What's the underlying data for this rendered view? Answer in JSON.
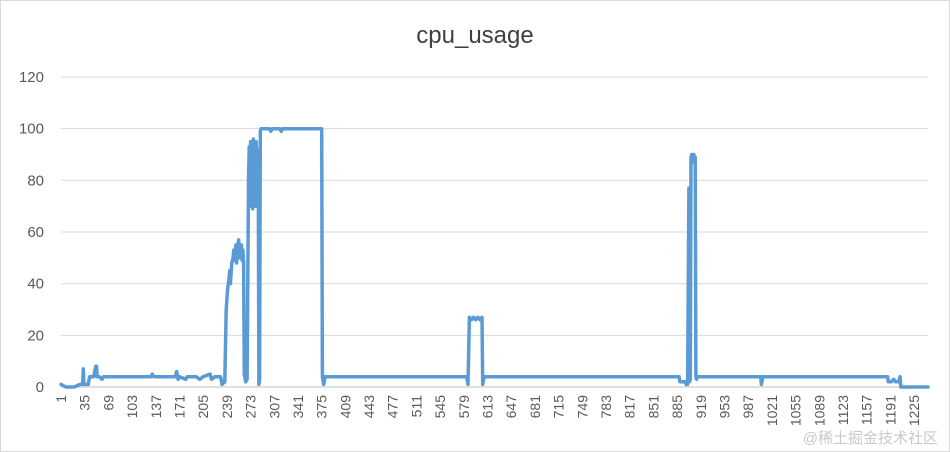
{
  "chart_data": {
    "type": "line",
    "title": "cpu_usage",
    "xlabel": "",
    "ylabel": "",
    "ylim": [
      0,
      120
    ],
    "y_ticks": [
      0,
      20,
      40,
      60,
      80,
      100,
      120
    ],
    "x_range": [
      1,
      1245
    ],
    "x_ticks": [
      1,
      35,
      69,
      103,
      137,
      171,
      205,
      239,
      273,
      307,
      341,
      375,
      409,
      443,
      477,
      511,
      545,
      579,
      613,
      647,
      681,
      715,
      749,
      783,
      817,
      851,
      885,
      919,
      953,
      987,
      1021,
      1055,
      1089,
      1123,
      1157,
      1191,
      1225
    ],
    "grid": true,
    "legend": "none",
    "color": "#5B9BD5",
    "series": [
      {
        "name": "",
        "points": [
          [
            1,
            1
          ],
          [
            8,
            0
          ],
          [
            20,
            0
          ],
          [
            28,
            1
          ],
          [
            32,
            1
          ],
          [
            33,
            7
          ],
          [
            34,
            1
          ],
          [
            40,
            1
          ],
          [
            42,
            4
          ],
          [
            48,
            4
          ],
          [
            50,
            7
          ],
          [
            51,
            8
          ],
          [
            52,
            8
          ],
          [
            53,
            4
          ],
          [
            56,
            4
          ],
          [
            60,
            3
          ],
          [
            62,
            4
          ],
          [
            100,
            4
          ],
          [
            130,
            4
          ],
          [
            132,
            5
          ],
          [
            134,
            4
          ],
          [
            165,
            4
          ],
          [
            167,
            6
          ],
          [
            169,
            3
          ],
          [
            171,
            4
          ],
          [
            180,
            3
          ],
          [
            182,
            4
          ],
          [
            195,
            4
          ],
          [
            200,
            3
          ],
          [
            205,
            4
          ],
          [
            215,
            5
          ],
          [
            217,
            3
          ],
          [
            222,
            4
          ],
          [
            230,
            4
          ],
          [
            232,
            1
          ],
          [
            236,
            2
          ],
          [
            238,
            30
          ],
          [
            240,
            38
          ],
          [
            242,
            42
          ],
          [
            243,
            45
          ],
          [
            244,
            40
          ],
          [
            246,
            48
          ],
          [
            248,
            50
          ],
          [
            249,
            53
          ],
          [
            250,
            49
          ],
          [
            252,
            55
          ],
          [
            253,
            48
          ],
          [
            254,
            54
          ],
          [
            256,
            57
          ],
          [
            257,
            50
          ],
          [
            258,
            53
          ],
          [
            260,
            55
          ],
          [
            261,
            49
          ],
          [
            262,
            53
          ],
          [
            263,
            48
          ],
          [
            264,
            5
          ],
          [
            266,
            2
          ],
          [
            268,
            3
          ],
          [
            270,
            80
          ],
          [
            271,
            93
          ],
          [
            272,
            70
          ],
          [
            273,
            95
          ],
          [
            274,
            72
          ],
          [
            275,
            94
          ],
          [
            276,
            69
          ],
          [
            277,
            96
          ],
          [
            278,
            73
          ],
          [
            279,
            94
          ],
          [
            280,
            70
          ],
          [
            281,
            95
          ],
          [
            282,
            75
          ],
          [
            283,
            80
          ],
          [
            284,
            92
          ],
          [
            285,
            1
          ],
          [
            286,
            3
          ],
          [
            287,
            99
          ],
          [
            288,
            100
          ],
          [
            300,
            100
          ],
          [
            302,
            99
          ],
          [
            304,
            100
          ],
          [
            315,
            100
          ],
          [
            317,
            99
          ],
          [
            319,
            100
          ],
          [
            365,
            100
          ],
          [
            375,
            100
          ],
          [
            376,
            4
          ],
          [
            378,
            1
          ],
          [
            380,
            4
          ],
          [
            400,
            4
          ],
          [
            440,
            4
          ],
          [
            500,
            4
          ],
          [
            560,
            4
          ],
          [
            583,
            4
          ],
          [
            585,
            1
          ],
          [
            587,
            27
          ],
          [
            590,
            26
          ],
          [
            593,
            27
          ],
          [
            596,
            26
          ],
          [
            599,
            27
          ],
          [
            602,
            26
          ],
          [
            605,
            27
          ],
          [
            606,
            1
          ],
          [
            608,
            4
          ],
          [
            700,
            4
          ],
          [
            800,
            4
          ],
          [
            888,
            4
          ],
          [
            889,
            2
          ],
          [
            896,
            2
          ],
          [
            898,
            1
          ],
          [
            899,
            2
          ],
          [
            900,
            1
          ],
          [
            902,
            77
          ],
          [
            903,
            2
          ],
          [
            904,
            3
          ],
          [
            905,
            89
          ],
          [
            906,
            90
          ],
          [
            907,
            87
          ],
          [
            908,
            89
          ],
          [
            909,
            90
          ],
          [
            910,
            88
          ],
          [
            911,
            89
          ],
          [
            912,
            4
          ],
          [
            913,
            3
          ],
          [
            914,
            4
          ],
          [
            950,
            4
          ],
          [
            990,
            4
          ],
          [
            1005,
            4
          ],
          [
            1006,
            1
          ],
          [
            1008,
            4
          ],
          [
            1100,
            4
          ],
          [
            1187,
            4
          ],
          [
            1188,
            2
          ],
          [
            1192,
            2
          ],
          [
            1196,
            3
          ],
          [
            1198,
            2
          ],
          [
            1203,
            2
          ],
          [
            1205,
            4
          ],
          [
            1206,
            0
          ],
          [
            1245,
            0
          ]
        ]
      }
    ]
  },
  "watermark": "@稀土掘金技术社区"
}
